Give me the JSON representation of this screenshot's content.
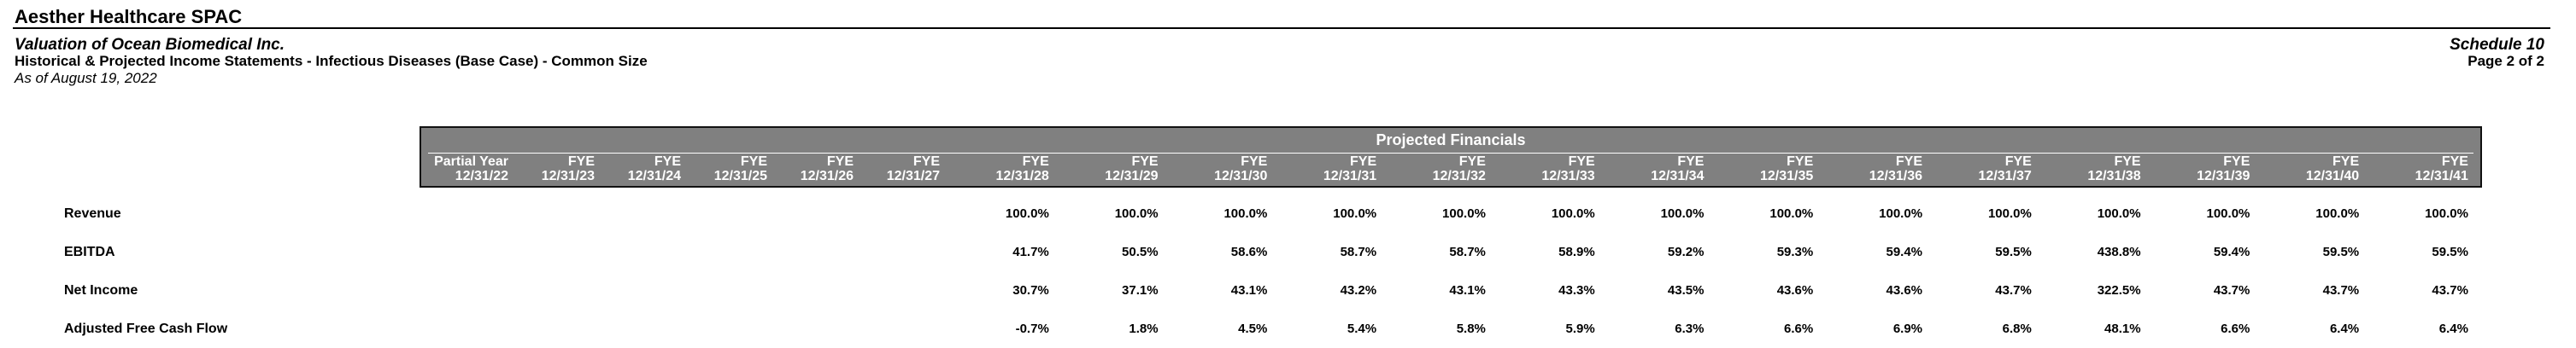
{
  "page": {
    "company": "Aesther Healthcare SPAC",
    "valuation_title": "Valuation of Ocean Biomedical Inc.",
    "statement_title": "Historical & Projected Income Statements - Infectious Diseases (Base Case) - Common Size",
    "as_of": "As of August 19, 2022",
    "schedule": "Schedule 10",
    "page_number": "Page 2 of 2"
  },
  "colors": {
    "header_bg": "#808080",
    "header_text": "#ffffff",
    "body_text": "#000000"
  },
  "table": {
    "band_title": "Projected Financials",
    "columns": [
      {
        "period": "Partial Year",
        "date": "12/31/22"
      },
      {
        "period": "FYE",
        "date": "12/31/23"
      },
      {
        "period": "FYE",
        "date": "12/31/24"
      },
      {
        "period": "FYE",
        "date": "12/31/25"
      },
      {
        "period": "FYE",
        "date": "12/31/26"
      },
      {
        "period": "FYE",
        "date": "12/31/27"
      },
      {
        "period": "FYE",
        "date": "12/31/28"
      },
      {
        "period": "FYE",
        "date": "12/31/29"
      },
      {
        "period": "FYE",
        "date": "12/31/30"
      },
      {
        "period": "FYE",
        "date": "12/31/31"
      },
      {
        "period": "FYE",
        "date": "12/31/32"
      },
      {
        "period": "FYE",
        "date": "12/31/33"
      },
      {
        "period": "FYE",
        "date": "12/31/34"
      },
      {
        "period": "FYE",
        "date": "12/31/35"
      },
      {
        "period": "FYE",
        "date": "12/31/36"
      },
      {
        "period": "FYE",
        "date": "12/31/37"
      },
      {
        "period": "FYE",
        "date": "12/31/38"
      },
      {
        "period": "FYE",
        "date": "12/31/39"
      },
      {
        "period": "FYE",
        "date": "12/31/40"
      },
      {
        "period": "FYE",
        "date": "12/31/41"
      }
    ],
    "rows": [
      {
        "label": "Revenue",
        "values": [
          "",
          "",
          "",
          "",
          "",
          "",
          "100.0%",
          "100.0%",
          "100.0%",
          "100.0%",
          "100.0%",
          "100.0%",
          "100.0%",
          "100.0%",
          "100.0%",
          "100.0%",
          "100.0%",
          "100.0%",
          "100.0%",
          "100.0%"
        ]
      },
      {
        "label": "EBITDA",
        "values": [
          "",
          "",
          "",
          "",
          "",
          "",
          "41.7%",
          "50.5%",
          "58.6%",
          "58.7%",
          "58.7%",
          "58.9%",
          "59.2%",
          "59.3%",
          "59.4%",
          "59.5%",
          "438.8%",
          "59.4%",
          "59.5%",
          "59.5%"
        ]
      },
      {
        "label": "Net Income",
        "values": [
          "",
          "",
          "",
          "",
          "",
          "",
          "30.7%",
          "37.1%",
          "43.1%",
          "43.2%",
          "43.1%",
          "43.3%",
          "43.5%",
          "43.6%",
          "43.6%",
          "43.7%",
          "322.5%",
          "43.7%",
          "43.7%",
          "43.7%"
        ]
      },
      {
        "label": "Adjusted Free Cash Flow",
        "values": [
          "",
          "",
          "",
          "",
          "",
          "",
          "-0.7%",
          "1.8%",
          "4.5%",
          "5.4%",
          "5.8%",
          "5.9%",
          "6.3%",
          "6.6%",
          "6.9%",
          "6.8%",
          "48.1%",
          "6.6%",
          "6.4%",
          "6.4%"
        ]
      }
    ]
  }
}
